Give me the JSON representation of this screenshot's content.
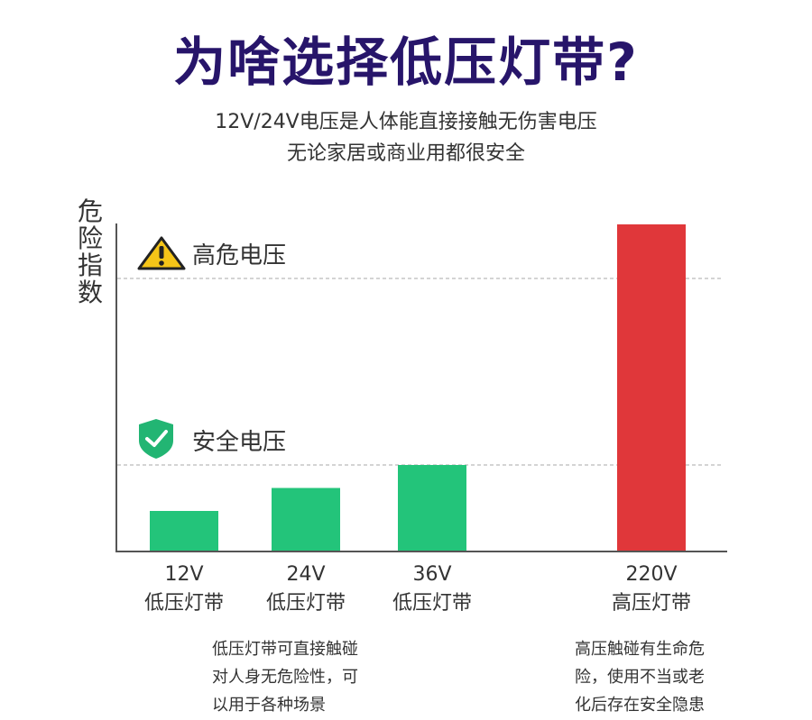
{
  "header": {
    "title": "为啥选择低压灯带?",
    "subtitle_line1": "12V/24V电压是人体能直接接触无伤害电压",
    "subtitle_line2": "无论家居或商业用都很安全"
  },
  "zones": {
    "danger_label": "高危电压",
    "safe_label": "安全电压"
  },
  "chart_data": {
    "type": "bar",
    "ylabel": "危险指数",
    "categories": [
      "12V 低压灯带",
      "24V 低压灯带",
      "36V 低压灯带",
      "220V 高压灯带"
    ],
    "category_lines": [
      [
        "12V",
        "低压灯带"
      ],
      [
        "24V",
        "低压灯带"
      ],
      [
        "36V",
        "低压灯带"
      ],
      [
        "220V",
        "高压灯带"
      ]
    ],
    "values": [
      12,
      24,
      36,
      220
    ],
    "bar_colors": [
      "#23c47a",
      "#23c47a",
      "#23c47a",
      "#e0373a"
    ],
    "reference_lines": [
      {
        "label": "安全电压",
        "value": 36
      },
      {
        "label": "高危电压",
        "value": 200
      }
    ],
    "grid": false
  },
  "notes": {
    "low": [
      "低压灯带可直接触碰",
      "对人身无危险性，可",
      "以用于各种场景"
    ],
    "high": [
      "高压触碰有生命危",
      "险，使用不当或老",
      "化后存在安全隐患"
    ]
  },
  "colors": {
    "title": "#27156a",
    "safe_green": "#23c47a",
    "danger_red": "#e0373a",
    "warning_yellow": "#f5c518",
    "shield_green": "#22b573"
  }
}
